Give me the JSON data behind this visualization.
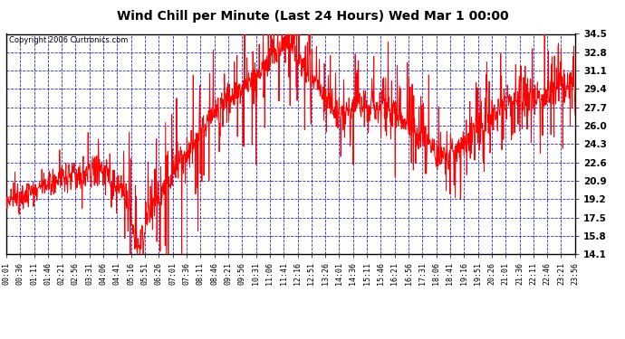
{
  "title": "Wind Chill per Minute (Last 24 Hours) Wed Mar 1 00:00",
  "copyright": "Copyright 2006 Curtronics.com",
  "yticks": [
    14.1,
    15.8,
    17.5,
    19.2,
    20.9,
    22.6,
    24.3,
    26.0,
    27.7,
    29.4,
    31.1,
    32.8,
    34.5
  ],
  "ymin": 14.1,
  "ymax": 34.5,
  "xtick_labels": [
    "00:01",
    "00:36",
    "01:11",
    "01:46",
    "02:21",
    "02:56",
    "03:31",
    "04:06",
    "04:41",
    "05:16",
    "05:51",
    "06:26",
    "07:01",
    "07:36",
    "08:11",
    "08:46",
    "09:21",
    "09:56",
    "10:31",
    "11:06",
    "11:41",
    "12:16",
    "12:51",
    "13:26",
    "14:01",
    "14:36",
    "15:11",
    "15:46",
    "16:21",
    "16:56",
    "17:31",
    "18:06",
    "18:41",
    "19:16",
    "19:51",
    "20:26",
    "21:01",
    "21:36",
    "22:11",
    "22:46",
    "23:21",
    "23:56"
  ],
  "line_color": "#ff0000",
  "bg_color": "#ffffff",
  "plot_bg_color": "#ffffff",
  "grid_color": "#0000cc",
  "title_color": "#000000",
  "border_color": "#000000",
  "line_width": 0.7
}
